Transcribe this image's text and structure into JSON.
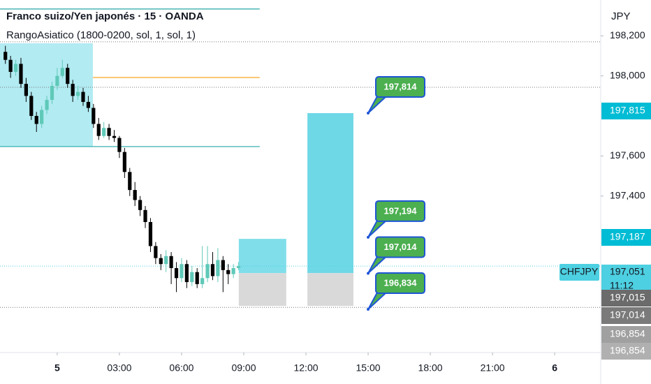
{
  "header": {
    "symbol": "Franco suizo/Yen japonés · 15 · OANDA",
    "indicator": "RangoAsiatico (1800-0200, sol, 1, sol, 1)",
    "currency": "JPY"
  },
  "chart_data": {
    "type": "candlestick",
    "x": [
      -2.5,
      -2.25,
      -2,
      -1.75,
      -1.5,
      -1.25,
      -1,
      -0.75,
      -0.5,
      -0.25,
      0,
      0.25,
      0.5,
      0.75,
      1,
      1.25,
      1.5,
      1.75,
      2,
      2.25,
      2.5,
      2.75,
      3,
      3.25,
      3.5,
      3.75,
      4,
      4.25,
      4.5,
      4.75,
      5,
      5.25,
      5.5,
      5.75,
      6,
      6.25,
      6.5,
      6.75,
      7,
      7.25,
      7.5,
      7.75,
      8,
      8.25,
      8.5,
      8.75
    ],
    "open": [
      198120,
      198080,
      198020,
      198060,
      197960,
      197900,
      197800,
      197760,
      197830,
      197880,
      197950,
      198000,
      198040,
      197960,
      197900,
      197920,
      197870,
      197840,
      197760,
      197700,
      197740,
      197700,
      197690,
      197620,
      197520,
      197430,
      197380,
      197330,
      197270,
      197150,
      197090,
      197060,
      197100,
      197040,
      196990,
      197060,
      196970,
      197020,
      196960,
      196990,
      197060,
      197000,
      197080,
      197030,
      197010,
      197040
    ],
    "high": [
      198150,
      198100,
      198080,
      198090,
      197990,
      197920,
      197820,
      197850,
      197900,
      197970,
      198040,
      198080,
      198060,
      197980,
      197950,
      197940,
      197900,
      197860,
      197790,
      197770,
      197760,
      197730,
      197700,
      197640,
      197540,
      197470,
      197400,
      197350,
      197290,
      197170,
      197110,
      197130,
      197120,
      197070,
      197090,
      197080,
      197050,
      197040,
      197150,
      197150,
      197120,
      197140,
      197100,
      197060,
      197060,
      197070
    ],
    "low": [
      198060,
      197990,
      198000,
      197940,
      197870,
      197780,
      197720,
      197740,
      197810,
      197860,
      197930,
      197990,
      197940,
      197870,
      197880,
      197850,
      197820,
      197740,
      197680,
      197690,
      197680,
      197670,
      197590,
      197490,
      197400,
      197350,
      197300,
      197240,
      197120,
      197060,
      197030,
      197020,
      196960,
      196920,
      196970,
      196940,
      196950,
      196940,
      196940,
      196970,
      196980,
      196970,
      196920,
      196960,
      196990,
      197030
    ],
    "close": [
      198080,
      198020,
      198060,
      197960,
      197900,
      197800,
      197760,
      197830,
      197880,
      197950,
      198000,
      198040,
      197960,
      197900,
      197920,
      197870,
      197840,
      197760,
      197700,
      197740,
      197700,
      197690,
      197620,
      197520,
      197430,
      197380,
      197330,
      197270,
      197150,
      197090,
      197060,
      197100,
      197040,
      196990,
      197060,
      196970,
      197020,
      196960,
      196990,
      197060,
      197000,
      197080,
      197030,
      197010,
      197040,
      197050
    ],
    "up_color": "#5fc9b8",
    "down_color": "#000000",
    "xlim": [
      -2.76,
      26.22
    ],
    "ylim": [
      198379,
      196618
    ],
    "xticks": [
      {
        "value": 0,
        "label": "5"
      },
      {
        "value": 3,
        "label": "03:00"
      },
      {
        "value": 6,
        "label": "06:00"
      },
      {
        "value": 9,
        "label": "09:00"
      },
      {
        "value": 12,
        "label": "12:00"
      },
      {
        "value": 15,
        "label": "15:00"
      },
      {
        "value": 18,
        "label": "18:00"
      },
      {
        "value": 21,
        "label": "21:00"
      },
      {
        "value": 24,
        "label": "6"
      }
    ],
    "yticks": [
      {
        "value": 198200,
        "label": "198,200"
      },
      {
        "value": 198000,
        "label": "198,000"
      },
      {
        "value": 197600,
        "label": "197,600"
      },
      {
        "value": 197400,
        "label": "197,400"
      }
    ],
    "zones": [
      {
        "x": [
          -2.76,
          1.72
        ],
        "y": [
          198163,
          197647
        ],
        "color": "#b2ebf2"
      },
      {
        "x": [
          8.76,
          11.05
        ],
        "y": [
          197186,
          197015
        ],
        "color": "#80deea"
      },
      {
        "x": [
          8.76,
          11.05
        ],
        "y": [
          197015,
          196851
        ],
        "color": "#d9d9d9"
      },
      {
        "x": [
          12.07,
          14.29
        ],
        "y": [
          197814,
          197015
        ],
        "color": "#6fd8e6"
      },
      {
        "x": [
          12.07,
          14.29
        ],
        "y": [
          197015,
          196851
        ],
        "color": "#d9d9d9"
      }
    ],
    "levels": [
      {
        "x": [
          -2.76,
          9.77
        ],
        "value": 198334,
        "color": "#26a6a6"
      },
      {
        "x": [
          -2.76,
          9.77
        ],
        "value": 197647,
        "color": "#26a6a6"
      },
      {
        "x": [
          1.72,
          9.77
        ],
        "value": 197992,
        "color": "#f5a623"
      }
    ],
    "dotted_levels": [
      198170,
      197943,
      197050,
      196844
    ],
    "callouts": [
      {
        "value": 197814,
        "label": "197,814"
      },
      {
        "value": 197194,
        "label": "197,194"
      },
      {
        "value": 197014,
        "label": "197,014"
      },
      {
        "value": 196834,
        "label": "196,834"
      }
    ],
    "axis_badges": [
      {
        "label": "197,815",
        "color": "#00bcd4"
      },
      {
        "label": "197,187",
        "color": "#00bcd4"
      },
      {
        "label": "197,051",
        "sub": "11:12",
        "tag": "CHFJPY",
        "color": "#4dd0e1"
      },
      {
        "label": "197,015",
        "color": "#6b6b6b"
      },
      {
        "label": "197,014",
        "color": "#7a7a7a"
      },
      {
        "label": "196,854",
        "color": "#a0a0a0"
      },
      {
        "label": "196,854",
        "color": "#b0b0b0"
      }
    ]
  }
}
